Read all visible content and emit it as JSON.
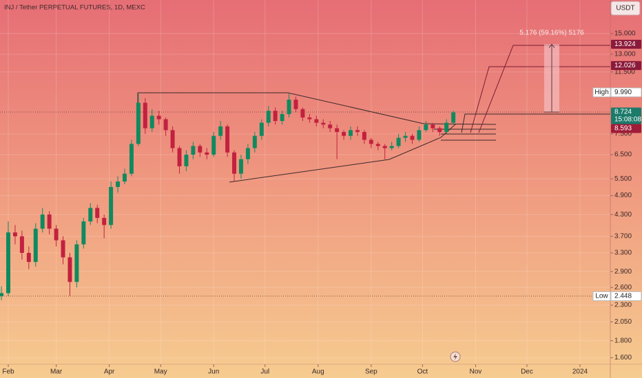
{
  "chart_data": {
    "type": "candlestick",
    "title": "INJ / Tether PERPETUAL FUTURES, 1D, MEXC",
    "currency": "USDT",
    "annotation": "5.176 (59.16%) 5176",
    "log_scale": true,
    "grid": true,
    "up_color": "#0f8a5f",
    "down_color": "#c2213f",
    "xlim": [
      -4.83,
      351.7
    ],
    "ylim": [
      1.53,
      18.9
    ],
    "xticks": [
      {
        "value": 0,
        "label": "Feb"
      },
      {
        "value": 28,
        "label": "Mar"
      },
      {
        "value": 59,
        "label": "Apr"
      },
      {
        "value": 89,
        "label": "May"
      },
      {
        "value": 120,
        "label": "Jun"
      },
      {
        "value": 150,
        "label": "Jul"
      },
      {
        "value": 181,
        "label": "Aug"
      },
      {
        "value": 212,
        "label": "Sep"
      },
      {
        "value": 242,
        "label": "Oct"
      },
      {
        "value": 273,
        "label": "Nov"
      },
      {
        "value": 303,
        "label": "Dec"
      },
      {
        "value": 334,
        "label": "2024"
      }
    ],
    "yticks": [
      {
        "value": 15,
        "label": "15.000"
      },
      {
        "value": 13,
        "label": "13.000"
      },
      {
        "value": 11.5,
        "label": "11.500"
      },
      {
        "value": 7.5,
        "label": "7.500"
      },
      {
        "value": 6.5,
        "label": "6.500"
      },
      {
        "value": 5.5,
        "label": "5.500"
      },
      {
        "value": 4.9,
        "label": "4.900"
      },
      {
        "value": 4.3,
        "label": "4.300"
      },
      {
        "value": 3.7,
        "label": "3.700"
      },
      {
        "value": 3.3,
        "label": "3.300"
      },
      {
        "value": 2.9,
        "label": "2.900"
      },
      {
        "value": 2.6,
        "label": "2.600"
      },
      {
        "value": 2.3,
        "label": "2.300"
      },
      {
        "value": 2.05,
        "label": "2.050"
      },
      {
        "value": 1.8,
        "label": "1.800"
      },
      {
        "value": 1.6,
        "label": "1.600"
      }
    ],
    "price_labels": [
      {
        "value": 13.924,
        "color": "#8b1a3a"
      },
      {
        "value": 12.026,
        "color": "#8b1a3a"
      },
      {
        "value": 9.99,
        "label": "9.990",
        "name": "High",
        "color": "#ffffff"
      },
      {
        "value": 8.724,
        "countdown": "15:08:08",
        "color": "#1b7a6a"
      },
      {
        "value": 8.593,
        "color": "#a01c38"
      },
      {
        "value": 2.448,
        "name": "Low",
        "color": "#ffffff"
      }
    ],
    "x": [
      -4,
      0,
      4,
      8,
      12,
      16,
      20,
      24,
      28,
      32,
      36,
      40,
      44,
      48,
      52,
      56,
      60,
      64,
      68,
      72,
      76,
      80,
      84,
      88,
      92,
      96,
      100,
      104,
      108,
      112,
      116,
      120,
      124,
      128,
      132,
      136,
      140,
      144,
      148,
      152,
      156,
      160,
      164,
      168,
      172,
      176,
      180,
      184,
      188,
      192,
      196,
      200,
      204,
      208,
      212,
      216,
      220,
      224,
      228,
      232,
      236,
      240,
      244,
      248,
      252,
      256,
      260
    ],
    "ohlc": [
      [
        2.45,
        2.62,
        2.38,
        2.5
      ],
      [
        2.5,
        4.1,
        2.45,
        3.8
      ],
      [
        3.8,
        4.0,
        3.5,
        3.7
      ],
      [
        3.7,
        3.85,
        3.15,
        3.3
      ],
      [
        3.3,
        3.45,
        2.95,
        3.1
      ],
      [
        3.1,
        4.05,
        3.0,
        3.9
      ],
      [
        3.9,
        4.5,
        3.8,
        4.3
      ],
      [
        4.3,
        4.4,
        3.75,
        3.9
      ],
      [
        3.9,
        4.0,
        3.45,
        3.6
      ],
      [
        3.6,
        3.7,
        3.05,
        3.2
      ],
      [
        3.2,
        3.3,
        2.45,
        2.7
      ],
      [
        2.7,
        3.6,
        2.6,
        3.5
      ],
      [
        3.5,
        4.2,
        3.4,
        4.1
      ],
      [
        4.1,
        4.65,
        4.0,
        4.5
      ],
      [
        4.5,
        4.6,
        4.05,
        4.2
      ],
      [
        4.2,
        4.3,
        3.65,
        4.0
      ],
      [
        4.0,
        5.4,
        3.9,
        5.2
      ],
      [
        5.2,
        5.6,
        5.0,
        5.4
      ],
      [
        5.4,
        5.9,
        5.3,
        5.7
      ],
      [
        5.7,
        7.2,
        5.6,
        7.0
      ],
      [
        7.0,
        9.9,
        6.9,
        9.3
      ],
      [
        9.3,
        9.6,
        7.5,
        7.8
      ],
      [
        7.8,
        8.9,
        7.6,
        8.5
      ],
      [
        8.5,
        8.8,
        8.0,
        8.3
      ],
      [
        8.3,
        8.4,
        7.4,
        7.7
      ],
      [
        7.7,
        7.9,
        6.6,
        6.8
      ],
      [
        6.8,
        6.9,
        5.7,
        6.0
      ],
      [
        6.0,
        6.7,
        5.8,
        6.5
      ],
      [
        6.5,
        7.1,
        6.3,
        6.9
      ],
      [
        6.9,
        7.0,
        6.4,
        6.6
      ],
      [
        6.6,
        6.8,
        6.3,
        6.5
      ],
      [
        6.5,
        7.6,
        6.4,
        7.4
      ],
      [
        7.4,
        8.2,
        7.2,
        7.9
      ],
      [
        7.9,
        8.0,
        6.4,
        6.6
      ],
      [
        6.6,
        6.7,
        5.4,
        5.7
      ],
      [
        5.7,
        6.5,
        5.5,
        6.3
      ],
      [
        6.3,
        7.0,
        6.1,
        6.8
      ],
      [
        6.8,
        7.6,
        6.6,
        7.4
      ],
      [
        7.4,
        8.3,
        7.2,
        8.1
      ],
      [
        8.1,
        9.1,
        7.9,
        8.8
      ],
      [
        8.8,
        9.0,
        8.0,
        8.2
      ],
      [
        8.2,
        8.8,
        8.0,
        8.6
      ],
      [
        8.6,
        9.9,
        8.4,
        9.5
      ],
      [
        9.5,
        9.7,
        8.7,
        8.9
      ],
      [
        8.9,
        9.0,
        8.2,
        8.4
      ],
      [
        8.4,
        8.6,
        8.1,
        8.3
      ],
      [
        8.3,
        8.5,
        7.9,
        8.1
      ],
      [
        8.1,
        8.3,
        7.8,
        8.0
      ],
      [
        8.0,
        8.2,
        7.6,
        7.8
      ],
      [
        7.8,
        8.0,
        6.3,
        7.6
      ],
      [
        7.6,
        7.7,
        7.2,
        7.4
      ],
      [
        7.4,
        7.9,
        7.2,
        7.7
      ],
      [
        7.7,
        7.9,
        7.4,
        7.6
      ],
      [
        7.6,
        7.7,
        7.0,
        7.2
      ],
      [
        7.2,
        7.3,
        6.8,
        7.0
      ],
      [
        7.0,
        7.1,
        6.7,
        6.9
      ],
      [
        6.9,
        7.0,
        6.3,
        6.8
      ],
      [
        6.8,
        7.1,
        6.7,
        6.9
      ],
      [
        6.9,
        7.5,
        6.8,
        7.3
      ],
      [
        7.3,
        7.6,
        7.1,
        7.4
      ],
      [
        7.4,
        7.5,
        7.0,
        7.2
      ],
      [
        7.2,
        7.9,
        7.1,
        7.7
      ],
      [
        7.7,
        8.2,
        7.6,
        8.0
      ],
      [
        8.0,
        8.1,
        7.6,
        7.8
      ],
      [
        7.8,
        7.9,
        7.4,
        7.6
      ],
      [
        7.6,
        8.3,
        7.5,
        8.1
      ],
      [
        8.1,
        8.8,
        8.0,
        8.7
      ]
    ]
  }
}
